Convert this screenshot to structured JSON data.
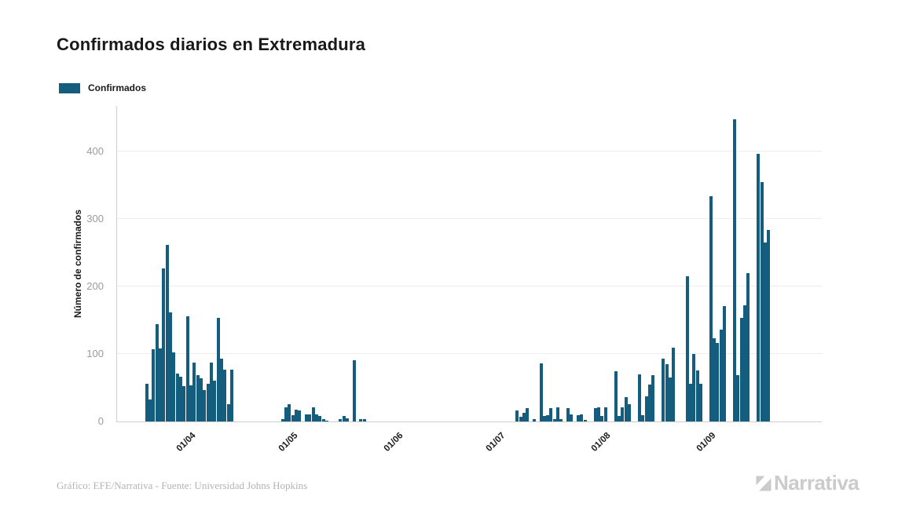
{
  "header": {
    "title": "Confirmados diarios en Extremadura"
  },
  "legend": {
    "items": [
      {
        "label": "Confirmados",
        "color": "#145D7F"
      }
    ]
  },
  "chart_data": {
    "type": "bar",
    "title": "Confirmados diarios en Extremadura",
    "series_name": "Confirmados",
    "xlabel": "",
    "ylabel": "Número de confirmados",
    "ylim": [
      0,
      467
    ],
    "y_ticks": [
      0,
      100,
      200,
      300,
      400
    ],
    "grid": "horizontal",
    "legend_position": "top-left",
    "bar_color": "#145D7F",
    "start_date": "21/03",
    "x_ticks": [
      {
        "index": 11,
        "label": "01/04"
      },
      {
        "index": 41,
        "label": "01/05"
      },
      {
        "index": 72,
        "label": "01/06"
      },
      {
        "index": 102,
        "label": "01/07"
      },
      {
        "index": 133,
        "label": "01/08"
      },
      {
        "index": 164,
        "label": "01/09"
      }
    ],
    "values": [
      56,
      33,
      107,
      144,
      108,
      226,
      261,
      161,
      102,
      71,
      66,
      52,
      156,
      54,
      87,
      68,
      64,
      46,
      56,
      87,
      61,
      153,
      93,
      77,
      25,
      77,
      0,
      0,
      0,
      0,
      0,
      0,
      0,
      0,
      0,
      0,
      0,
      0,
      0,
      0,
      3,
      21,
      25,
      9,
      17,
      16,
      0,
      10,
      11,
      21,
      11,
      8,
      4,
      1,
      0,
      0,
      0,
      4,
      8,
      5,
      0,
      91,
      0,
      3,
      4,
      0,
      0,
      0,
      0,
      0,
      0,
      0,
      0,
      0,
      0,
      0,
      0,
      0,
      0,
      0,
      0,
      0,
      0,
      0,
      0,
      0,
      0,
      0,
      0,
      0,
      0,
      0,
      0,
      0,
      0,
      0,
      0,
      0,
      0,
      0,
      0,
      0,
      0,
      0,
      0,
      0,
      0,
      0,
      0,
      16,
      7,
      13,
      20,
      0,
      3,
      0,
      86,
      8,
      9,
      20,
      3,
      21,
      3,
      0,
      20,
      11,
      0,
      9,
      10,
      2,
      0,
      0,
      20,
      21,
      8,
      21,
      0,
      0,
      74,
      8,
      21,
      36,
      26,
      0,
      0,
      70,
      9,
      37,
      55,
      68,
      0,
      0,
      93,
      85,
      65,
      109,
      0,
      0,
      0,
      215,
      56,
      100,
      76,
      56,
      0,
      0,
      333,
      123,
      116,
      136,
      171,
      0,
      0,
      447,
      69,
      153,
      172,
      219,
      0,
      0,
      396,
      354,
      265,
      283
    ]
  },
  "footer": {
    "credit": "Gráfico: EFE/Narrativa - Fuente: Universidad Johns Hopkins",
    "brand": "Narrativa"
  }
}
